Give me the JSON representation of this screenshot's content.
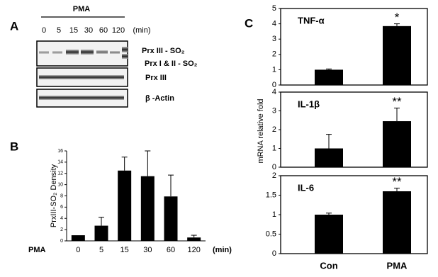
{
  "panel_labels": [
    "A",
    "B",
    "C"
  ],
  "blot": {
    "treatment": "PMA",
    "lanes": [
      "0",
      "5",
      "15",
      "30",
      "60",
      "120"
    ],
    "lane_unit": "(min)",
    "band_labels": [
      "Prx III - SO₂",
      "Prx I & II - SO₂",
      "Prx III",
      "β -Actin"
    ]
  },
  "chart_data": [
    {
      "type": "bar",
      "ylabel": "PrxIII-SO₂ Density",
      "xlabel": "PMA",
      "xunit": "(min)",
      "categories": [
        "0",
        "5",
        "15",
        "30",
        "60",
        "120"
      ],
      "values": [
        1,
        2.7,
        12.5,
        11.5,
        7.9,
        0.6
      ],
      "errors": [
        0,
        1.5,
        2.4,
        4.5,
        3.8,
        0.4
      ],
      "color": "#000000",
      "ylim": [
        0,
        16
      ],
      "yticks": [
        0,
        2,
        4,
        6,
        8,
        10,
        12,
        14,
        16
      ]
    },
    {
      "type": "bar",
      "ylabel": "mRNA relative fold",
      "categories": [
        "Con",
        "PMA"
      ],
      "color": "#000000",
      "panels": [
        {
          "title": "TNF-α",
          "values": [
            1.0,
            3.85
          ],
          "errors": [
            0.05,
            0.15
          ],
          "annotation": "*",
          "ylim": [
            0,
            5
          ],
          "yticks": [
            0,
            1,
            2,
            3,
            4,
            5
          ]
        },
        {
          "title": "IL-1β",
          "values": [
            1.0,
            2.45
          ],
          "errors": [
            0.75,
            0.7
          ],
          "annotation": "**",
          "ylim": [
            0,
            4
          ],
          "yticks": [
            0,
            1,
            2,
            3,
            4
          ]
        },
        {
          "title": "IL-6",
          "values": [
            1.0,
            1.6
          ],
          "errors": [
            0.04,
            0.08
          ],
          "annotation": "**",
          "ylim": [
            0,
            2
          ],
          "yticks": [
            0,
            0.5,
            1,
            1.5,
            2
          ]
        }
      ]
    }
  ]
}
